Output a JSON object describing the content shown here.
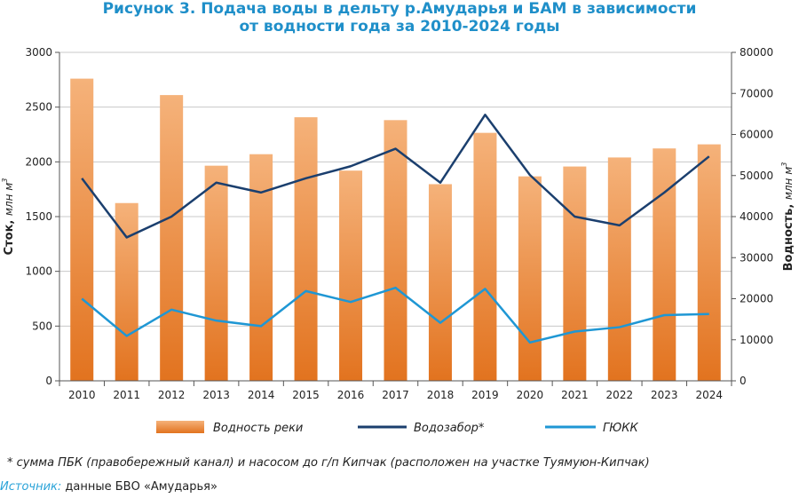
{
  "title_line1": "Рисунок 3. Подача воды в дельту р.Амударья и БАМ в зависимости",
  "title_line2": "от водности года за 2010-2024 годы",
  "footnote": "* сумма ПБК (правобережный канал) и насосом до г/п Кипчак (расположен на участке Туямуюн-Кипчак)",
  "source_label": "Источник:",
  "source_text": " данные БВО «Амударья»",
  "colors": {
    "bar_top": "#f5b27a",
    "bar_bottom": "#e2731f",
    "vodozabor": "#1b3f6e",
    "gyukk": "#1f97d4",
    "title": "#1f8fc9"
  },
  "chart_data": {
    "type": "bar+line",
    "categories": [
      "2010",
      "2011",
      "2012",
      "2013",
      "2014",
      "2015",
      "2016",
      "2017",
      "2018",
      "2019",
      "2020",
      "2021",
      "2022",
      "2023",
      "2024"
    ],
    "left_axis": {
      "label": "Сток,",
      "label_unit": "млн м",
      "label_sup": "3",
      "min": 0,
      "max": 3000,
      "ticks": [
        "0",
        "500",
        "1000",
        "1500",
        "2000",
        "2500",
        "3000"
      ]
    },
    "right_axis": {
      "label": "Водность,",
      "label_unit": "млн м",
      "label_sup": "3",
      "min": 0,
      "max": 80000,
      "ticks": [
        "0",
        "10000",
        "20000",
        "30000",
        "40000",
        "50000",
        "60000",
        "70000",
        "80000"
      ]
    },
    "series": [
      {
        "name": "Водность реки",
        "type": "bar",
        "axis": "right",
        "values": [
          73600,
          43300,
          69600,
          52400,
          55200,
          64200,
          51200,
          63500,
          47900,
          60400,
          49800,
          52200,
          54400,
          56600,
          57600
        ]
      },
      {
        "name": "Водозабор*",
        "type": "line",
        "axis": "left",
        "values": [
          1850,
          1310,
          1500,
          1810,
          1720,
          1850,
          1960,
          2120,
          1810,
          2430,
          1880,
          1500,
          1420,
          1720,
          2050
        ]
      },
      {
        "name": "ГЮКК",
        "type": "line",
        "axis": "left",
        "values": [
          750,
          410,
          650,
          550,
          500,
          820,
          720,
          850,
          530,
          840,
          350,
          450,
          490,
          600,
          610
        ]
      }
    ]
  }
}
